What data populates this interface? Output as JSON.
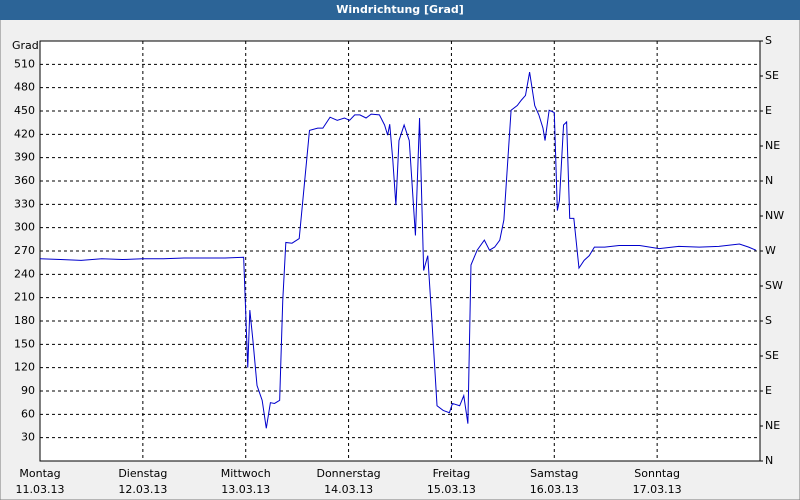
{
  "chart_data": {
    "type": "line",
    "title": "Windrichtung [Grad]",
    "y_label": "Grad",
    "xlim": [
      0,
      7
    ],
    "xticks": [
      {
        "value": 0,
        "label": "Montag",
        "date": "11.03.13"
      },
      {
        "value": 1,
        "label": "Dienstag",
        "date": "12.03.13"
      },
      {
        "value": 2,
        "label": "Mittwoch",
        "date": "13.03.13"
      },
      {
        "value": 3,
        "label": "Donnerstag",
        "date": "14.03.13"
      },
      {
        "value": 4,
        "label": "Freitag",
        "date": "15.03.13"
      },
      {
        "value": 5,
        "label": "Samstag",
        "date": "16.03.13"
      },
      {
        "value": 6,
        "label": "Sonntag",
        "date": "17.03.13"
      },
      7
    ],
    "ylim": [
      0,
      540
    ],
    "yticks": [
      30,
      60,
      90,
      120,
      150,
      180,
      210,
      240,
      270,
      300,
      330,
      360,
      390,
      420,
      450,
      480,
      510
    ],
    "y2lim": [
      0,
      540
    ],
    "y2ticks": [
      {
        "value": 0,
        "label": "N"
      },
      {
        "value": 45,
        "label": "NE"
      },
      {
        "value": 90,
        "label": "E"
      },
      {
        "value": 135,
        "label": "SE"
      },
      {
        "value": 180,
        "label": "S"
      },
      {
        "value": 225,
        "label": "SW"
      },
      {
        "value": 270,
        "label": "W"
      },
      {
        "value": 315,
        "label": "NW"
      },
      {
        "value": 360,
        "label": "N"
      },
      {
        "value": 405,
        "label": "NE"
      },
      {
        "value": 450,
        "label": "E"
      },
      {
        "value": 495,
        "label": "SE"
      },
      {
        "value": 540,
        "label": "S"
      }
    ],
    "grid": true,
    "x": [
      0,
      0.2,
      0.4,
      0.6,
      0.8,
      1.0,
      1.2,
      1.4,
      1.6,
      1.8,
      1.98,
      2.02,
      2.04,
      2.07,
      2.11,
      2.16,
      2.2,
      2.24,
      2.28,
      2.33,
      2.36,
      2.39,
      2.45,
      2.52,
      2.62,
      2.7,
      2.75,
      2.82,
      2.89,
      2.96,
      3.01,
      3.06,
      3.11,
      3.17,
      3.22,
      3.3,
      3.35,
      3.38,
      3.4,
      3.43,
      3.46,
      3.49,
      3.54,
      3.59,
      3.65,
      3.69,
      3.73,
      3.77,
      3.81,
      3.86,
      3.92,
      3.98,
      4.01,
      4.08,
      4.12,
      4.16,
      4.19,
      4.25,
      4.32,
      4.37,
      4.42,
      4.47,
      4.51,
      4.58,
      4.64,
      4.68,
      4.72,
      4.76,
      4.81,
      4.85,
      4.89,
      4.91,
      4.95,
      5.0,
      5.03,
      5.05,
      5.09,
      5.12,
      5.15,
      5.19,
      5.24,
      5.29,
      5.34,
      5.39,
      5.49,
      5.63,
      5.83,
      6.02,
      6.21,
      6.41,
      6.6,
      6.8,
      6.89,
      6.96
    ],
    "series": [
      {
        "color": "#0000cc",
        "values": [
          260,
          259,
          258,
          260,
          259,
          260,
          260,
          261,
          261,
          261,
          262,
          120,
          194,
          155,
          97,
          78,
          42,
          75,
          74,
          78,
          206,
          281,
          280,
          286,
          425,
          428,
          428,
          442,
          438,
          441,
          438,
          445,
          445,
          441,
          446,
          445,
          432,
          419,
          433,
          387,
          329,
          412,
          432,
          412,
          290,
          441,
          245,
          264,
          181,
          71,
          65,
          62,
          74,
          71,
          84,
          48,
          252,
          271,
          284,
          271,
          275,
          284,
          310,
          451,
          457,
          464,
          470,
          500,
          457,
          445,
          428,
          412,
          451,
          448,
          322,
          335,
          432,
          436,
          312,
          312,
          248,
          258,
          264,
          275,
          275,
          277,
          277,
          273,
          276,
          275,
          276,
          279,
          275,
          271
        ]
      }
    ]
  }
}
